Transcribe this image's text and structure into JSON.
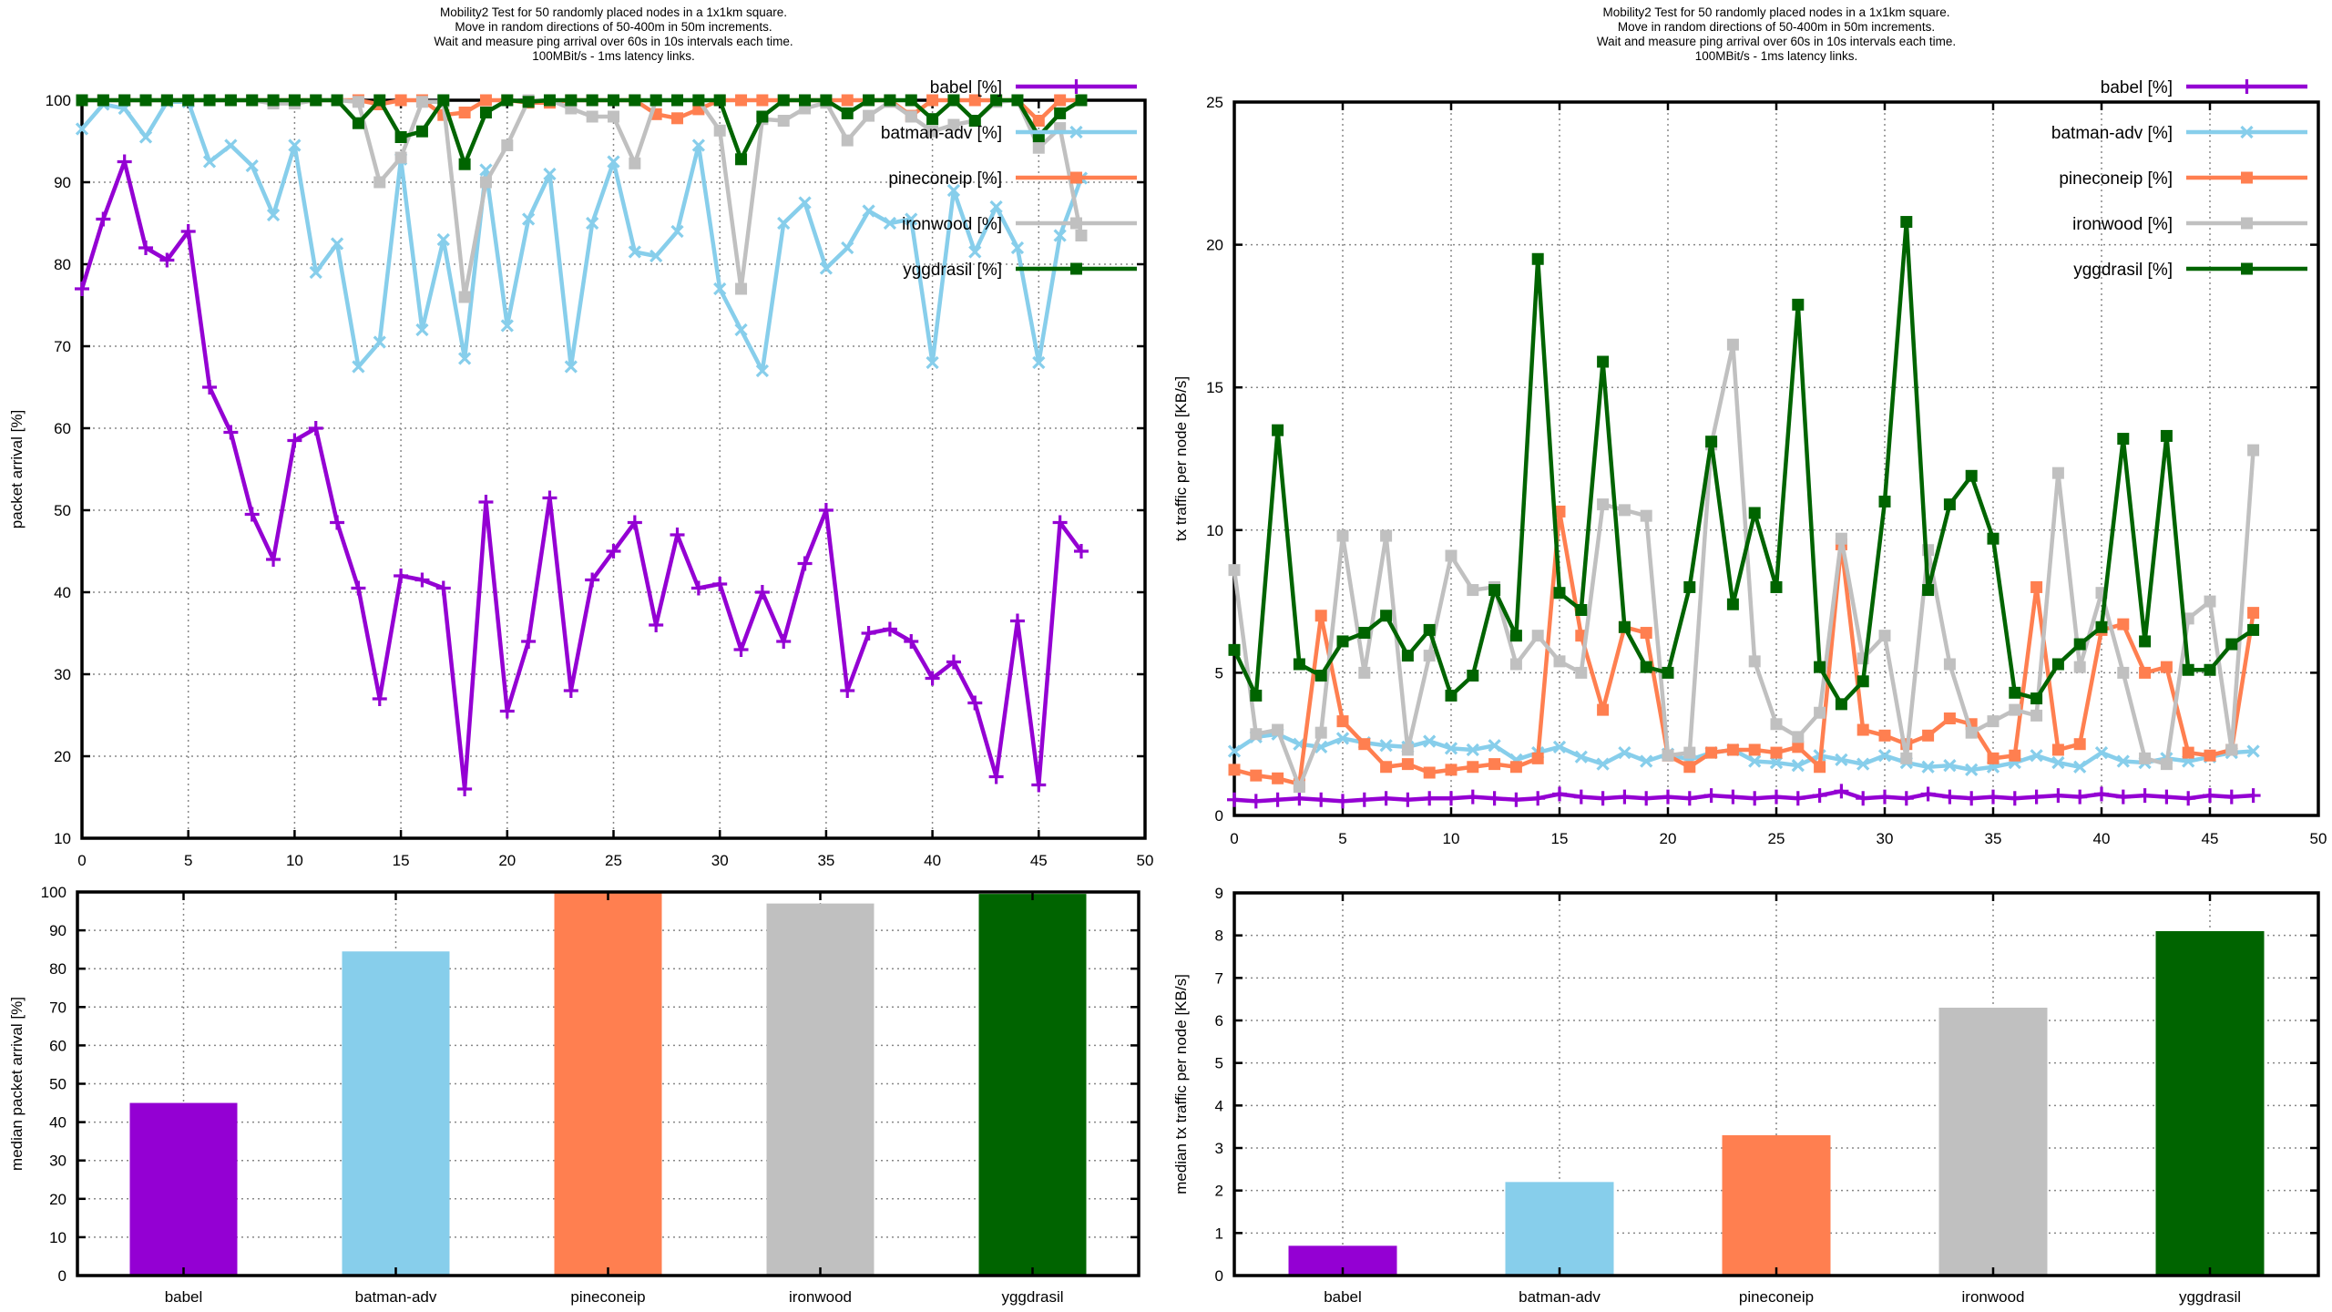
{
  "colors": {
    "background": "#ffffff",
    "text": "#000000",
    "grid": "#888888",
    "babel": "#9400d3",
    "batman_adv": "#87ceeb",
    "pineconeip": "#ff7f50",
    "ironwood": "#c0c0c0",
    "yggdrasil": "#006400"
  },
  "chart_data": [
    {
      "id": "packet-arrival-line",
      "type": "line",
      "title_lines": [
        "Mobility2 Test for 50 randomly placed nodes in a 1x1km square.",
        "Move in random directions of 50-400m in 50m increments.",
        "Wait and measure ping arrival over 60s in 10s intervals each time.",
        "100MBit/s - 1ms latency links."
      ],
      "xlabel": "",
      "ylabel": "packet arrival [%]",
      "xlim": [
        0,
        50
      ],
      "ylim": [
        10,
        100
      ],
      "xticks": [
        0,
        5,
        10,
        15,
        20,
        25,
        30,
        35,
        40,
        45,
        50
      ],
      "yticks": [
        10,
        20,
        30,
        40,
        50,
        60,
        70,
        80,
        90,
        100
      ],
      "grid": true,
      "legend_position": "inside-top-right",
      "x_start": 0,
      "x_step": 1,
      "series": [
        {
          "name": "babel",
          "label": "babel [%]",
          "color": "#9400d3",
          "marker": "plus",
          "values": [
            77,
            85.5,
            92.5,
            82,
            80.5,
            84,
            65,
            59.5,
            49.5,
            44,
            58.5,
            60,
            48.5,
            40.5,
            27,
            42,
            41.5,
            40.5,
            16,
            51,
            25.5,
            34,
            51.5,
            28,
            41.5,
            45,
            48.5,
            36,
            47,
            40.5,
            41,
            33,
            40,
            34,
            43.5,
            50,
            28,
            35,
            35.5,
            34,
            29.5,
            31.5,
            26.5,
            17.5,
            36.5,
            16.5,
            48.5,
            45
          ]
        },
        {
          "name": "batman-adv",
          "label": "batman-adv [%]",
          "color": "#87ceeb",
          "marker": "cross",
          "values": [
            96.5,
            99.5,
            99,
            95.5,
            99.8,
            99.8,
            92.5,
            94.5,
            92,
            86,
            94.5,
            79,
            82.5,
            67.5,
            70.5,
            92.8,
            72,
            83,
            68.5,
            91.5,
            72.5,
            85.5,
            91,
            67.5,
            85,
            92.5,
            81.5,
            81,
            84,
            94.5,
            77,
            72,
            67,
            85,
            87.5,
            79.5,
            82,
            86.5,
            85,
            85.5,
            68,
            89,
            81.5,
            87,
            82,
            68,
            83.5,
            90.5
          ]
        },
        {
          "name": "pineconeip",
          "label": "pineconeip [%]",
          "color": "#ff7f50",
          "marker": "square",
          "values": [
            100,
            100,
            100,
            100,
            100,
            100,
            100,
            100,
            100,
            100,
            100,
            100,
            100,
            100,
            99.5,
            100,
            100,
            98.2,
            98.5,
            100,
            100,
            99.7,
            99.7,
            100,
            100,
            100,
            100,
            98.3,
            97.8,
            98.9,
            100,
            100,
            100,
            100,
            100,
            100,
            100,
            100,
            100,
            98.1,
            100,
            100,
            100,
            100,
            100,
            97.5,
            100,
            100
          ]
        },
        {
          "name": "ironwood",
          "label": "ironwood [%]",
          "color": "#c0c0c0",
          "marker": "square",
          "values": [
            100,
            100,
            100,
            100,
            100,
            100,
            100,
            100,
            100,
            99.6,
            99.6,
            100,
            100,
            99.8,
            90,
            93,
            99.8,
            99.8,
            76,
            90,
            94.5,
            100,
            100,
            99,
            98,
            98,
            92.3,
            100,
            100,
            100,
            96.3,
            77,
            97.7,
            97.5,
            99,
            99.7,
            95.1,
            98.1,
            99.8,
            98,
            96.2,
            97,
            97.5,
            99.8,
            100,
            94.2,
            96.6,
            83.5
          ]
        },
        {
          "name": "yggdrasil",
          "label": "yggdrasil [%]",
          "color": "#006400",
          "marker": "square",
          "values": [
            100,
            100,
            100,
            100,
            100,
            100,
            100,
            100,
            100,
            100,
            100,
            100,
            100,
            97.2,
            100,
            95.5,
            96.2,
            100,
            92.2,
            98.5,
            100,
            99.8,
            100,
            100,
            100,
            100,
            100,
            100,
            100,
            100,
            100,
            92.8,
            98,
            100,
            100,
            100,
            98.4,
            100,
            100,
            100,
            97.7,
            100,
            97.5,
            100,
            100,
            95.6,
            98.4,
            100
          ]
        }
      ]
    },
    {
      "id": "tx-traffic-line",
      "type": "line",
      "title_lines": [
        "Mobility2 Test for 50 randomly placed nodes in a 1x1km square.",
        "Move in random directions of 50-400m in 50m increments.",
        "Wait and measure ping arrival over 60s in 10s intervals each time.",
        "100MBit/s - 1ms latency links."
      ],
      "xlabel": "",
      "ylabel": "tx traffic per node [KB/s]",
      "xlim": [
        0,
        50
      ],
      "ylim": [
        0,
        25
      ],
      "xticks": [
        0,
        5,
        10,
        15,
        20,
        25,
        30,
        35,
        40,
        45,
        50
      ],
      "yticks": [
        0,
        5,
        10,
        15,
        20,
        25
      ],
      "grid": true,
      "legend_position": "inside-top-right",
      "x_start": 0,
      "x_step": 1,
      "series": [
        {
          "name": "babel",
          "label": "babel [%]",
          "color": "#9400d3",
          "marker": "plus",
          "values": [
            0.55,
            0.5,
            0.55,
            0.6,
            0.55,
            0.5,
            0.55,
            0.6,
            0.55,
            0.6,
            0.6,
            0.65,
            0.6,
            0.55,
            0.6,
            0.75,
            0.65,
            0.6,
            0.65,
            0.6,
            0.65,
            0.6,
            0.7,
            0.65,
            0.6,
            0.65,
            0.6,
            0.7,
            0.85,
            0.6,
            0.65,
            0.6,
            0.75,
            0.65,
            0.6,
            0.65,
            0.6,
            0.65,
            0.7,
            0.65,
            0.75,
            0.65,
            0.7,
            0.65,
            0.6,
            0.7,
            0.65,
            0.7
          ]
        },
        {
          "name": "batman-adv",
          "label": "batman-adv [%]",
          "color": "#87ceeb",
          "marker": "cross",
          "values": [
            2.25,
            2.75,
            2.85,
            2.5,
            2.4,
            2.7,
            2.55,
            2.45,
            2.4,
            2.6,
            2.35,
            2.3,
            2.45,
            1.95,
            2.2,
            2.4,
            2.05,
            1.8,
            2.2,
            1.9,
            2.15,
            1.95,
            2.2,
            2.3,
            1.9,
            1.85,
            1.75,
            2.1,
            1.95,
            1.8,
            2.1,
            1.85,
            1.7,
            1.75,
            1.6,
            1.7,
            1.85,
            2.1,
            1.85,
            1.7,
            2.2,
            1.9,
            1.85,
            2.0,
            1.9,
            2.05,
            2.2,
            2.25
          ]
        },
        {
          "name": "pineconeip",
          "label": "pineconeip [%]",
          "color": "#ff7f50",
          "marker": "square",
          "values": [
            1.6,
            1.4,
            1.3,
            1.1,
            7.0,
            3.3,
            2.5,
            1.7,
            1.8,
            1.5,
            1.6,
            1.7,
            1.8,
            1.7,
            2.0,
            10.65,
            6.3,
            3.7,
            6.6,
            6.4,
            2.1,
            1.7,
            2.2,
            2.3,
            2.3,
            2.2,
            2.4,
            1.7,
            9.5,
            3.0,
            2.8,
            2.5,
            2.8,
            3.4,
            3.2,
            2.0,
            2.1,
            8.0,
            2.3,
            2.5,
            6.5,
            6.7,
            5.0,
            5.2,
            2.2,
            2.1,
            2.3,
            7.1
          ]
        },
        {
          "name": "ironwood",
          "label": "ironwood [%]",
          "color": "#c0c0c0",
          "marker": "square",
          "values": [
            8.6,
            2.85,
            3.0,
            1.0,
            2.9,
            9.8,
            5.0,
            9.8,
            2.3,
            5.6,
            9.1,
            7.9,
            8.0,
            5.3,
            6.3,
            5.4,
            5.0,
            10.9,
            10.7,
            10.5,
            2.1,
            2.2,
            13.0,
            16.5,
            5.4,
            3.2,
            2.75,
            3.6,
            9.7,
            5.5,
            6.3,
            2.0,
            9.3,
            5.3,
            2.9,
            3.3,
            3.7,
            3.5,
            12.0,
            5.2,
            7.8,
            5.0,
            2.0,
            1.8,
            6.9,
            7.5,
            2.3,
            12.8
          ]
        },
        {
          "name": "yggdrasil",
          "label": "yggdrasil [%]",
          "color": "#006400",
          "marker": "square",
          "values": [
            5.8,
            4.2,
            13.5,
            5.3,
            4.9,
            6.1,
            6.4,
            7.0,
            5.6,
            6.5,
            4.2,
            4.9,
            7.9,
            6.3,
            19.5,
            7.8,
            7.2,
            15.9,
            6.6,
            5.2,
            5.0,
            8.0,
            13.1,
            7.4,
            10.6,
            8.0,
            17.9,
            5.2,
            3.9,
            4.7,
            11.0,
            20.8,
            7.9,
            10.9,
            11.9,
            9.7,
            4.3,
            4.1,
            5.3,
            6.0,
            6.6,
            13.2,
            6.1,
            13.3,
            5.1,
            5.1,
            6.0,
            6.5
          ]
        }
      ]
    },
    {
      "id": "median-packet-arrival-bar",
      "type": "bar",
      "xlabel": "",
      "ylabel": "median packet arrival [%]",
      "ylim": [
        0,
        100
      ],
      "yticks": [
        0,
        10,
        20,
        30,
        40,
        50,
        60,
        70,
        80,
        90,
        100
      ],
      "grid": true,
      "categories": [
        "babel",
        "batman-adv",
        "pineconeip",
        "ironwood",
        "yggdrasil"
      ],
      "values": [
        45,
        84.5,
        100,
        97,
        99.5
      ],
      "bar_colors": [
        "#9400d3",
        "#87ceeb",
        "#ff7f50",
        "#c0c0c0",
        "#006400"
      ]
    },
    {
      "id": "median-tx-traffic-bar",
      "type": "bar",
      "xlabel": "",
      "ylabel": "median tx traffic per node [KB/s]",
      "ylim": [
        0,
        9
      ],
      "yticks": [
        0,
        1,
        2,
        3,
        4,
        5,
        6,
        7,
        8,
        9
      ],
      "grid": true,
      "categories": [
        "babel",
        "batman-adv",
        "pineconeip",
        "ironwood",
        "yggdrasil"
      ],
      "values": [
        0.7,
        2.2,
        3.3,
        6.3,
        8.1
      ],
      "bar_colors": [
        "#9400d3",
        "#87ceeb",
        "#ff7f50",
        "#c0c0c0",
        "#006400"
      ]
    }
  ]
}
